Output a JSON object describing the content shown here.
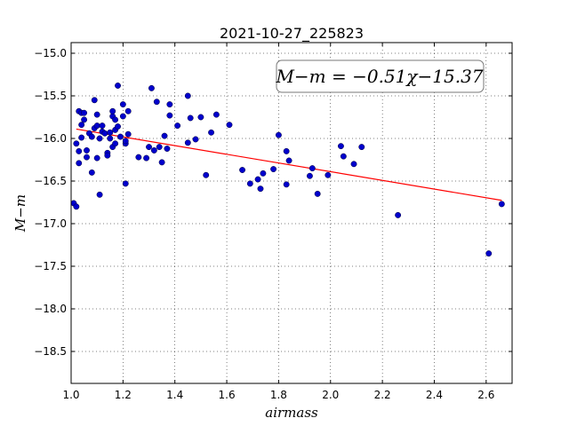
{
  "chart_data": {
    "type": "scatter",
    "title": "2021-10-27_225823",
    "xlabel": "airmass",
    "ylabel": "M−m",
    "xlim": [
      1.0,
      2.7
    ],
    "ylim": [
      -18.875,
      -14.875
    ],
    "y_inverted": true,
    "x_ticks": [
      1.0,
      1.2,
      1.4,
      1.6,
      1.8,
      2.0,
      2.2,
      2.4,
      2.6
    ],
    "x_tick_labels": [
      "1.0",
      "1.2",
      "1.4",
      "1.6",
      "1.8",
      "2.0",
      "2.2",
      "2.4",
      "2.6"
    ],
    "y_ticks": [
      -15.0,
      -15.5,
      -16.0,
      -16.5,
      -17.0,
      -17.5,
      -18.0,
      -18.5
    ],
    "y_tick_labels": [
      "−15.0",
      "−15.5",
      "−16.0",
      "−16.5",
      "−17.0",
      "−17.5",
      "−18.0",
      "−18.5"
    ],
    "grid": true,
    "annotation": "M−m = −0.51χ−15.37",
    "annotation_position": "top-right",
    "fit": {
      "slope": -0.51,
      "intercept": -15.37,
      "x_range": [
        1.02,
        2.66
      ],
      "color": "#ff0000"
    },
    "point_color": "#0000cc",
    "points": [
      [
        1.01,
        -16.76
      ],
      [
        1.02,
        -16.8
      ],
      [
        1.02,
        -16.06
      ],
      [
        1.03,
        -16.15
      ],
      [
        1.03,
        -16.29
      ],
      [
        1.03,
        -15.68
      ],
      [
        1.04,
        -15.7
      ],
      [
        1.04,
        -15.84
      ],
      [
        1.04,
        -15.99
      ],
      [
        1.05,
        -15.7
      ],
      [
        1.05,
        -15.78
      ],
      [
        1.06,
        -16.14
      ],
      [
        1.06,
        -16.22
      ],
      [
        1.07,
        -15.94
      ],
      [
        1.08,
        -15.98
      ],
      [
        1.08,
        -16.4
      ],
      [
        1.09,
        -15.88
      ],
      [
        1.09,
        -15.55
      ],
      [
        1.1,
        -15.72
      ],
      [
        1.1,
        -16.23
      ],
      [
        1.1,
        -15.85
      ],
      [
        1.11,
        -16.66
      ],
      [
        1.11,
        -16.0
      ],
      [
        1.12,
        -15.85
      ],
      [
        1.12,
        -15.92
      ],
      [
        1.13,
        -15.94
      ],
      [
        1.14,
        -16.17
      ],
      [
        1.14,
        -16.2
      ],
      [
        1.15,
        -15.93
      ],
      [
        1.15,
        -16.0
      ],
      [
        1.16,
        -15.74
      ],
      [
        1.16,
        -15.68
      ],
      [
        1.16,
        -16.1
      ],
      [
        1.17,
        -15.9
      ],
      [
        1.17,
        -16.06
      ],
      [
        1.17,
        -15.78
      ],
      [
        1.18,
        -15.38
      ],
      [
        1.18,
        -15.86
      ],
      [
        1.19,
        -15.98
      ],
      [
        1.2,
        -15.74
      ],
      [
        1.2,
        -15.6
      ],
      [
        1.21,
        -16.06
      ],
      [
        1.21,
        -16.03
      ],
      [
        1.21,
        -16.53
      ],
      [
        1.22,
        -15.95
      ],
      [
        1.22,
        -15.68
      ],
      [
        1.26,
        -16.22
      ],
      [
        1.29,
        -16.23
      ],
      [
        1.3,
        -16.1
      ],
      [
        1.31,
        -15.41
      ],
      [
        1.32,
        -16.14
      ],
      [
        1.33,
        -15.57
      ],
      [
        1.34,
        -16.1
      ],
      [
        1.35,
        -16.28
      ],
      [
        1.36,
        -15.97
      ],
      [
        1.37,
        -16.12
      ],
      [
        1.38,
        -15.6
      ],
      [
        1.38,
        -15.73
      ],
      [
        1.41,
        -15.85
      ],
      [
        1.45,
        -16.05
      ],
      [
        1.45,
        -15.5
      ],
      [
        1.46,
        -15.76
      ],
      [
        1.48,
        -16.01
      ],
      [
        1.5,
        -15.75
      ],
      [
        1.52,
        -16.43
      ],
      [
        1.54,
        -15.93
      ],
      [
        1.56,
        -15.72
      ],
      [
        1.61,
        -15.84
      ],
      [
        1.66,
        -16.37
      ],
      [
        1.69,
        -16.53
      ],
      [
        1.72,
        -16.48
      ],
      [
        1.73,
        -16.59
      ],
      [
        1.74,
        -16.41
      ],
      [
        1.78,
        -16.36
      ],
      [
        1.8,
        -15.96
      ],
      [
        1.83,
        -16.54
      ],
      [
        1.83,
        -16.15
      ],
      [
        1.84,
        -16.26
      ],
      [
        1.92,
        -16.44
      ],
      [
        1.93,
        -16.35
      ],
      [
        1.95,
        -16.65
      ],
      [
        1.99,
        -16.43
      ],
      [
        2.04,
        -16.09
      ],
      [
        2.05,
        -16.21
      ],
      [
        2.09,
        -16.3
      ],
      [
        2.12,
        -16.1
      ],
      [
        2.26,
        -16.9
      ],
      [
        2.61,
        -17.35
      ],
      [
        2.66,
        -16.77
      ]
    ]
  }
}
